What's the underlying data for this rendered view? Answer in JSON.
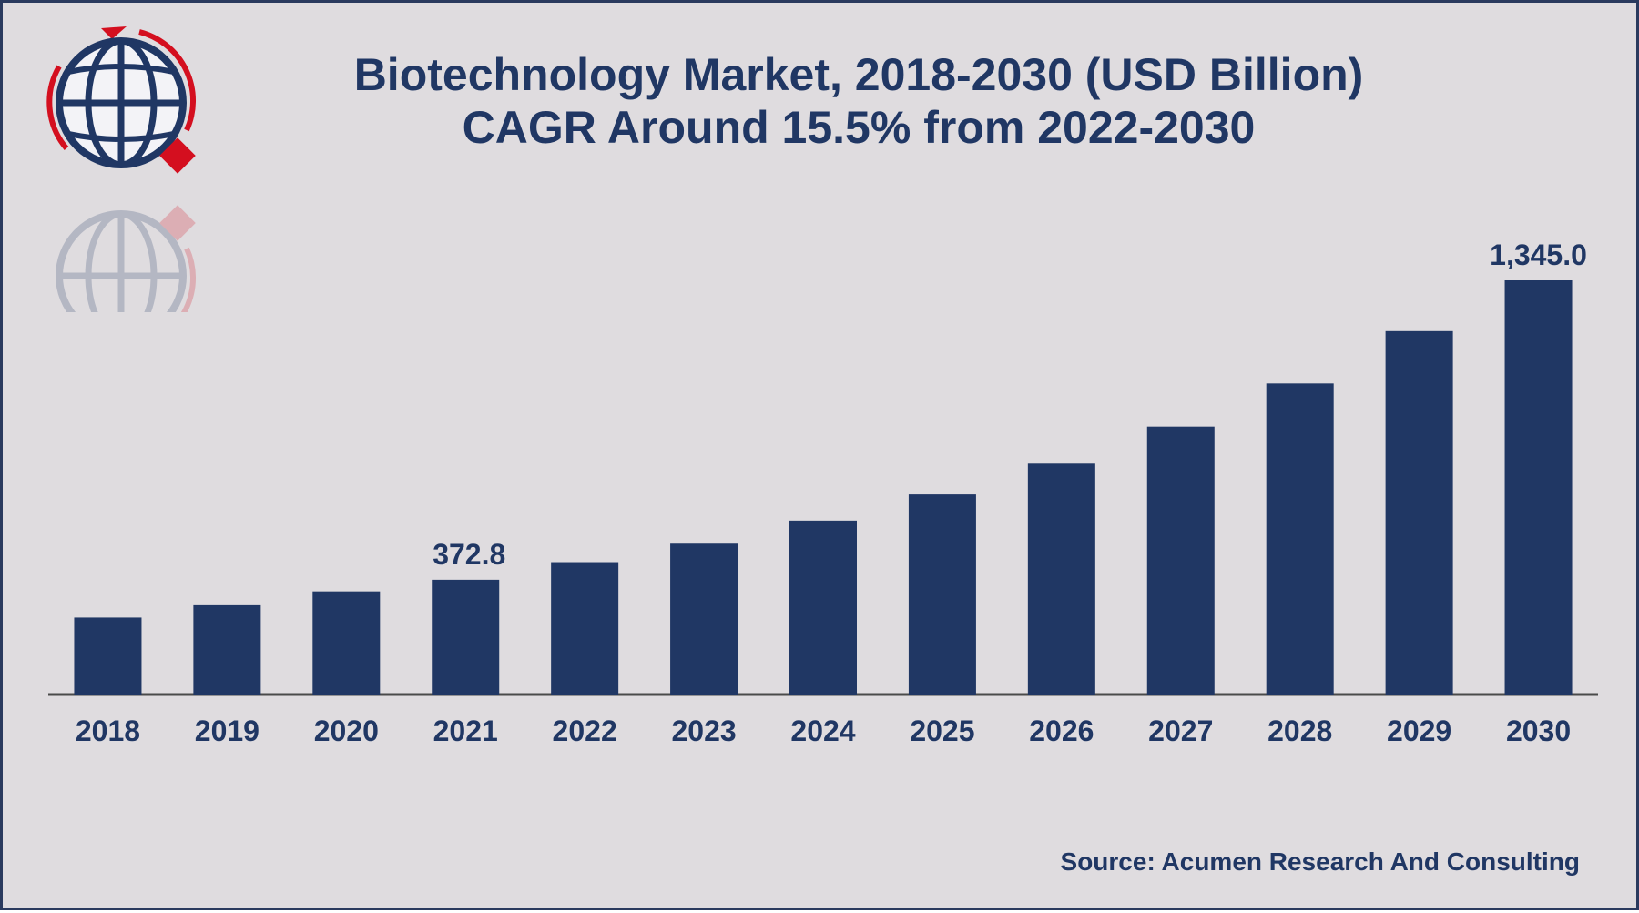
{
  "title": {
    "line1": "Biotechnology Market, 2018-2030 (USD Billion)",
    "line2": "CAGR Around 15.5% from 2022-2030"
  },
  "source": "Source: Acumen Research And Consulting",
  "logo": {
    "icon": "globe-logo-icon"
  },
  "colors": {
    "bar": "#203764",
    "axis": "#4a4a4a",
    "background": "#dfdcdf",
    "logo_red": "#d40f1f"
  },
  "chart_data": {
    "type": "bar",
    "categories": [
      "2018",
      "2019",
      "2020",
      "2021",
      "2022",
      "2023",
      "2024",
      "2025",
      "2026",
      "2027",
      "2028",
      "2029",
      "2030"
    ],
    "values": [
      250,
      290,
      335,
      372.8,
      430,
      490,
      565,
      650,
      750,
      870,
      1010,
      1180,
      1345.0
    ],
    "data_labels": [
      {
        "category": "2021",
        "text": "372.8"
      },
      {
        "category": "2030",
        "text": "1,345.0"
      }
    ],
    "title": "Biotechnology Market, 2018-2030 (USD Billion)",
    "xlabel": "",
    "ylabel": "",
    "ylim": [
      0,
      1345
    ],
    "grid": false,
    "legend": "none"
  }
}
